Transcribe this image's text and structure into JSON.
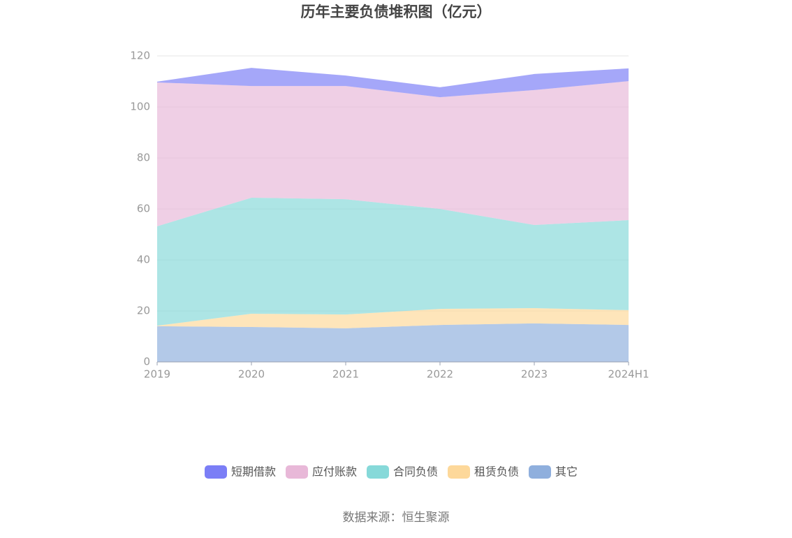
{
  "chart_data": {
    "type": "stacked_area",
    "title": "历年主要负债堆积图（亿元）",
    "categories": [
      "2019",
      "2020",
      "2021",
      "2022",
      "2023",
      "2024H1"
    ],
    "series": [
      {
        "name": "短期借款",
        "color": "#7b7ef6",
        "values": [
          0.3,
          7.1,
          4.1,
          3.9,
          6.3,
          5.0
        ]
      },
      {
        "name": "应付账款",
        "color": "#e8b8d8",
        "values": [
          56.4,
          43.8,
          44.4,
          43.8,
          52.9,
          54.5
        ]
      },
      {
        "name": "合同负债",
        "color": "#86d9d9",
        "values": [
          39.0,
          45.5,
          45.2,
          39.2,
          32.6,
          35.3
        ]
      },
      {
        "name": "租赁负债",
        "color": "#fdd89a",
        "values": [
          0.2,
          5.2,
          5.4,
          6.3,
          6.0,
          5.8
        ]
      },
      {
        "name": "其它",
        "color": "#8fafdd",
        "values": [
          14.0,
          13.7,
          13.2,
          14.5,
          15.1,
          14.5
        ]
      }
    ],
    "ylim": [
      0,
      120
    ],
    "yticks": [
      0,
      20,
      40,
      60,
      80,
      100,
      120
    ],
    "grid": true,
    "source": "数据来源：恒生聚源"
  }
}
